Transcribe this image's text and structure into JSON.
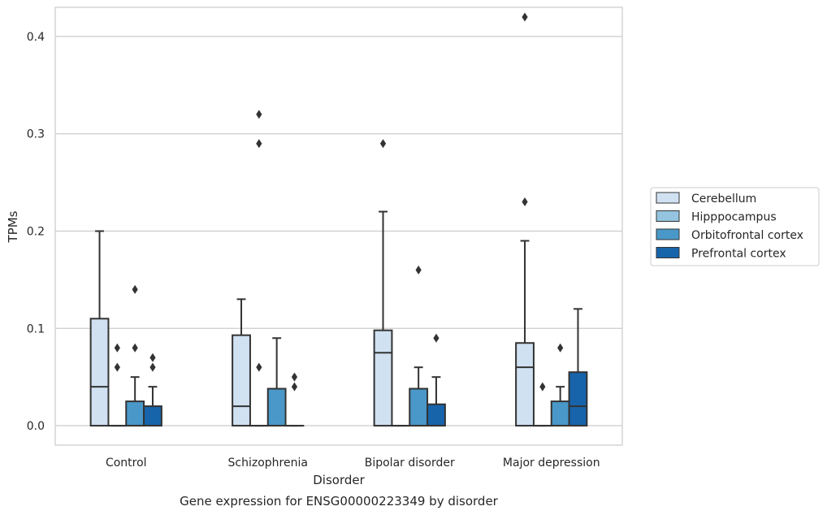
{
  "chart_data": {
    "type": "box",
    "title": "Gene expression for ENSG00000223349 by disorder",
    "xlabel": "Disorder",
    "ylabel": "TPMs",
    "ylim": [
      -0.02,
      0.43
    ],
    "yticks": [
      0.0,
      0.1,
      0.2,
      0.3,
      0.4
    ],
    "ytick_labels": [
      "0.0",
      "0.1",
      "0.2",
      "0.3",
      "0.4"
    ],
    "grid": true,
    "legend_position": "right",
    "categories": [
      "Control",
      "Schizophrenia",
      "Bipolar disorder",
      "Major depression"
    ],
    "series": [
      {
        "name": "Cerebellum",
        "color": "#d0e1f2",
        "boxes": [
          {
            "whislo": 0.0,
            "q1": 0.0,
            "med": 0.04,
            "q3": 0.11,
            "whishi": 0.2,
            "fliers": []
          },
          {
            "whislo": 0.0,
            "q1": 0.0,
            "med": 0.02,
            "q3": 0.093,
            "whishi": 0.13,
            "fliers": []
          },
          {
            "whislo": 0.0,
            "q1": 0.0,
            "med": 0.075,
            "q3": 0.098,
            "whishi": 0.22,
            "fliers": [
              0.29
            ]
          },
          {
            "whislo": 0.0,
            "q1": 0.0,
            "med": 0.06,
            "q3": 0.085,
            "whishi": 0.19,
            "fliers": [
              0.23,
              0.42
            ]
          }
        ]
      },
      {
        "name": "Hipppocampus",
        "color": "#94c4df",
        "boxes": [
          {
            "whislo": 0.0,
            "q1": 0.0,
            "med": 0.0,
            "q3": 0.0,
            "whishi": 0.0,
            "fliers": [
              0.06,
              0.08
            ]
          },
          {
            "whislo": 0.0,
            "q1": 0.0,
            "med": 0.0,
            "q3": 0.0,
            "whishi": 0.0,
            "fliers": [
              0.06,
              0.29,
              0.32
            ]
          },
          {
            "whislo": 0.0,
            "q1": 0.0,
            "med": 0.0,
            "q3": 0.0,
            "whishi": 0.0,
            "fliers": []
          },
          {
            "whislo": 0.0,
            "q1": 0.0,
            "med": 0.0,
            "q3": 0.0,
            "whishi": 0.0,
            "fliers": [
              0.04
            ]
          }
        ]
      },
      {
        "name": "Orbitofrontal cortex",
        "color": "#4a98c9",
        "boxes": [
          {
            "whislo": 0.0,
            "q1": 0.0,
            "med": 0.0,
            "q3": 0.025,
            "whishi": 0.05,
            "fliers": [
              0.08,
              0.14
            ]
          },
          {
            "whislo": 0.0,
            "q1": 0.0,
            "med": 0.0,
            "q3": 0.038,
            "whishi": 0.09,
            "fliers": []
          },
          {
            "whislo": 0.0,
            "q1": 0.0,
            "med": 0.0,
            "q3": 0.038,
            "whishi": 0.06,
            "fliers": [
              0.16
            ]
          },
          {
            "whislo": 0.0,
            "q1": 0.0,
            "med": 0.0,
            "q3": 0.025,
            "whishi": 0.04,
            "fliers": [
              0.08
            ]
          }
        ]
      },
      {
        "name": "Prefrontal cortex",
        "color": "#1764ab",
        "boxes": [
          {
            "whislo": 0.0,
            "q1": 0.0,
            "med": 0.0,
            "q3": 0.02,
            "whishi": 0.04,
            "fliers": [
              0.06,
              0.07
            ]
          },
          {
            "whislo": 0.0,
            "q1": 0.0,
            "med": 0.0,
            "q3": 0.0,
            "whishi": 0.0,
            "fliers": [
              0.04,
              0.05
            ]
          },
          {
            "whislo": 0.0,
            "q1": 0.0,
            "med": 0.0,
            "q3": 0.022,
            "whishi": 0.05,
            "fliers": [
              0.09
            ]
          },
          {
            "whislo": 0.0,
            "q1": 0.0,
            "med": 0.02,
            "q3": 0.055,
            "whishi": 0.12,
            "fliers": []
          }
        ]
      }
    ]
  }
}
